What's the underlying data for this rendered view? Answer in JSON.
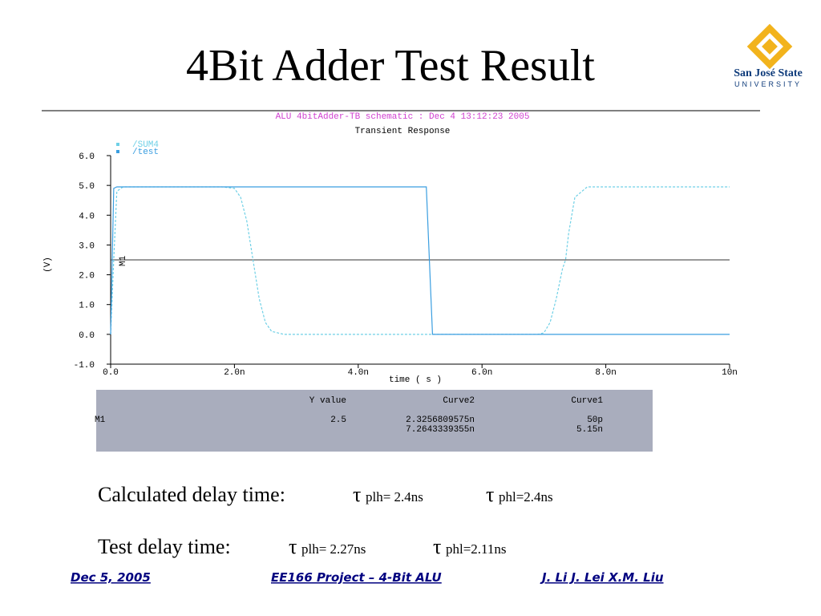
{
  "slide": {
    "title": "4Bit Adder Test Result",
    "logo": {
      "name": "San José State",
      "sub": "UNIVERSITY"
    },
    "lines": [
      {
        "label": "Calculated delay time:",
        "items": [
          {
            "symbol": "τ",
            "text": "plh= 2.4ns"
          },
          {
            "symbol": "τ",
            "text": "phl=2.4ns"
          }
        ]
      },
      {
        "label": "Test delay time:",
        "items": [
          {
            "symbol": "τ",
            "text": "plh= 2.27ns"
          },
          {
            "symbol": "τ",
            "text": "phl=2.11ns"
          }
        ]
      }
    ],
    "footer": {
      "date": "Dec 5, 2005",
      "project": "EE166 Project – 4-Bit ALU",
      "authors": "J. Li  J. Lei  X.M. Liu"
    }
  },
  "table": {
    "headers": [
      "Y value",
      "Curve2",
      "Curve1"
    ],
    "rows": [
      {
        "label": "M1",
        "y": "2.5",
        "curve2": "2.3256809575n",
        "curve1": "50p"
      },
      {
        "curve2": "7.2643339355n",
        "curve1": "5.15n"
      }
    ]
  },
  "chart_data": {
    "type": "line",
    "title": "ALU 4bitAdder-TB schematic : Dec  4 13:12:23 2005",
    "subtitle": "Transient Response",
    "x_label": "time ( s )",
    "y_label": "(V)",
    "xlim": [
      0,
      10
    ],
    "ylim": [
      -1,
      6
    ],
    "xticks": [
      {
        "value": 0,
        "label": "0.0"
      },
      {
        "value": 2,
        "label": "2.0n"
      },
      {
        "value": 4,
        "label": "4.0n"
      },
      {
        "value": 6,
        "label": "6.0n"
      },
      {
        "value": 8,
        "label": "8.0n"
      },
      {
        "value": 10,
        "label": "10n"
      }
    ],
    "yticks": [
      {
        "value": -1,
        "label": "-1.0"
      },
      {
        "value": 0,
        "label": "0.0"
      },
      {
        "value": 1,
        "label": "1.0"
      },
      {
        "value": 2,
        "label": "2.0"
      },
      {
        "value": 3,
        "label": "3.0"
      },
      {
        "value": 4,
        "label": "4.0"
      },
      {
        "value": 5,
        "label": "5.0"
      },
      {
        "value": 6,
        "label": "6.0"
      }
    ],
    "marker": {
      "label": "M1",
      "value": 2.5
    },
    "series": [
      {
        "name": "/SUM4",
        "color": "#6fd0e6",
        "dashed": true,
        "x": [
          0,
          0.05,
          0.1,
          0.2,
          1.8,
          2.0,
          2.1,
          2.2,
          2.3,
          2.4,
          2.5,
          2.6,
          2.8,
          6.9,
          7.0,
          7.1,
          7.2,
          7.3,
          7.35,
          7.4,
          7.5,
          7.7,
          10
        ],
        "values": [
          0,
          2.5,
          4.8,
          4.95,
          4.95,
          4.9,
          4.6,
          3.8,
          2.5,
          1.2,
          0.4,
          0.1,
          0,
          0,
          0.05,
          0.4,
          1.2,
          2.2,
          2.5,
          3.4,
          4.6,
          4.95,
          4.95
        ]
      },
      {
        "name": "/test",
        "color": "#3a9ee0",
        "dashed": false,
        "x": [
          0,
          0.05,
          0.1,
          5.1,
          5.2,
          10
        ],
        "values": [
          0,
          4.9,
          4.95,
          4.95,
          0,
          0
        ]
      }
    ]
  }
}
